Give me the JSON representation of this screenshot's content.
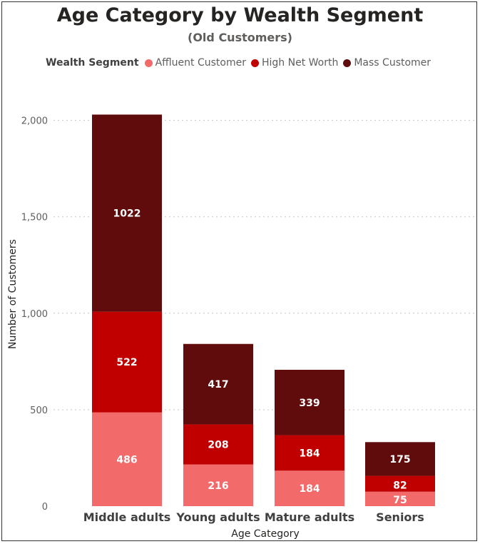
{
  "chart_data": {
    "type": "bar",
    "stacked": true,
    "title": "Age Category by Wealth Segment",
    "subtitle": "(Old Customers)",
    "legend_title": "Wealth Segment",
    "legend_position": "top-left",
    "xlabel": "Age Category",
    "ylabel": "Number of Customers",
    "ylim": [
      0,
      2150
    ],
    "yticks": [
      0,
      500,
      1000,
      1500,
      2000
    ],
    "ytick_labels": [
      "0",
      "500",
      "1,000",
      "1,500",
      "2,000"
    ],
    "grid": true,
    "categories": [
      "Middle adults",
      "Young adults",
      "Mature adults",
      "Seniors"
    ],
    "series": [
      {
        "name": "Affluent Customer",
        "color": "#f26a6a",
        "values": [
          486,
          216,
          184,
          75
        ]
      },
      {
        "name": "High Net Worth",
        "color": "#c00000",
        "values": [
          522,
          208,
          184,
          82
        ]
      },
      {
        "name": "Mass Customer",
        "color": "#600c0c",
        "values": [
          1022,
          417,
          339,
          175
        ]
      }
    ]
  }
}
